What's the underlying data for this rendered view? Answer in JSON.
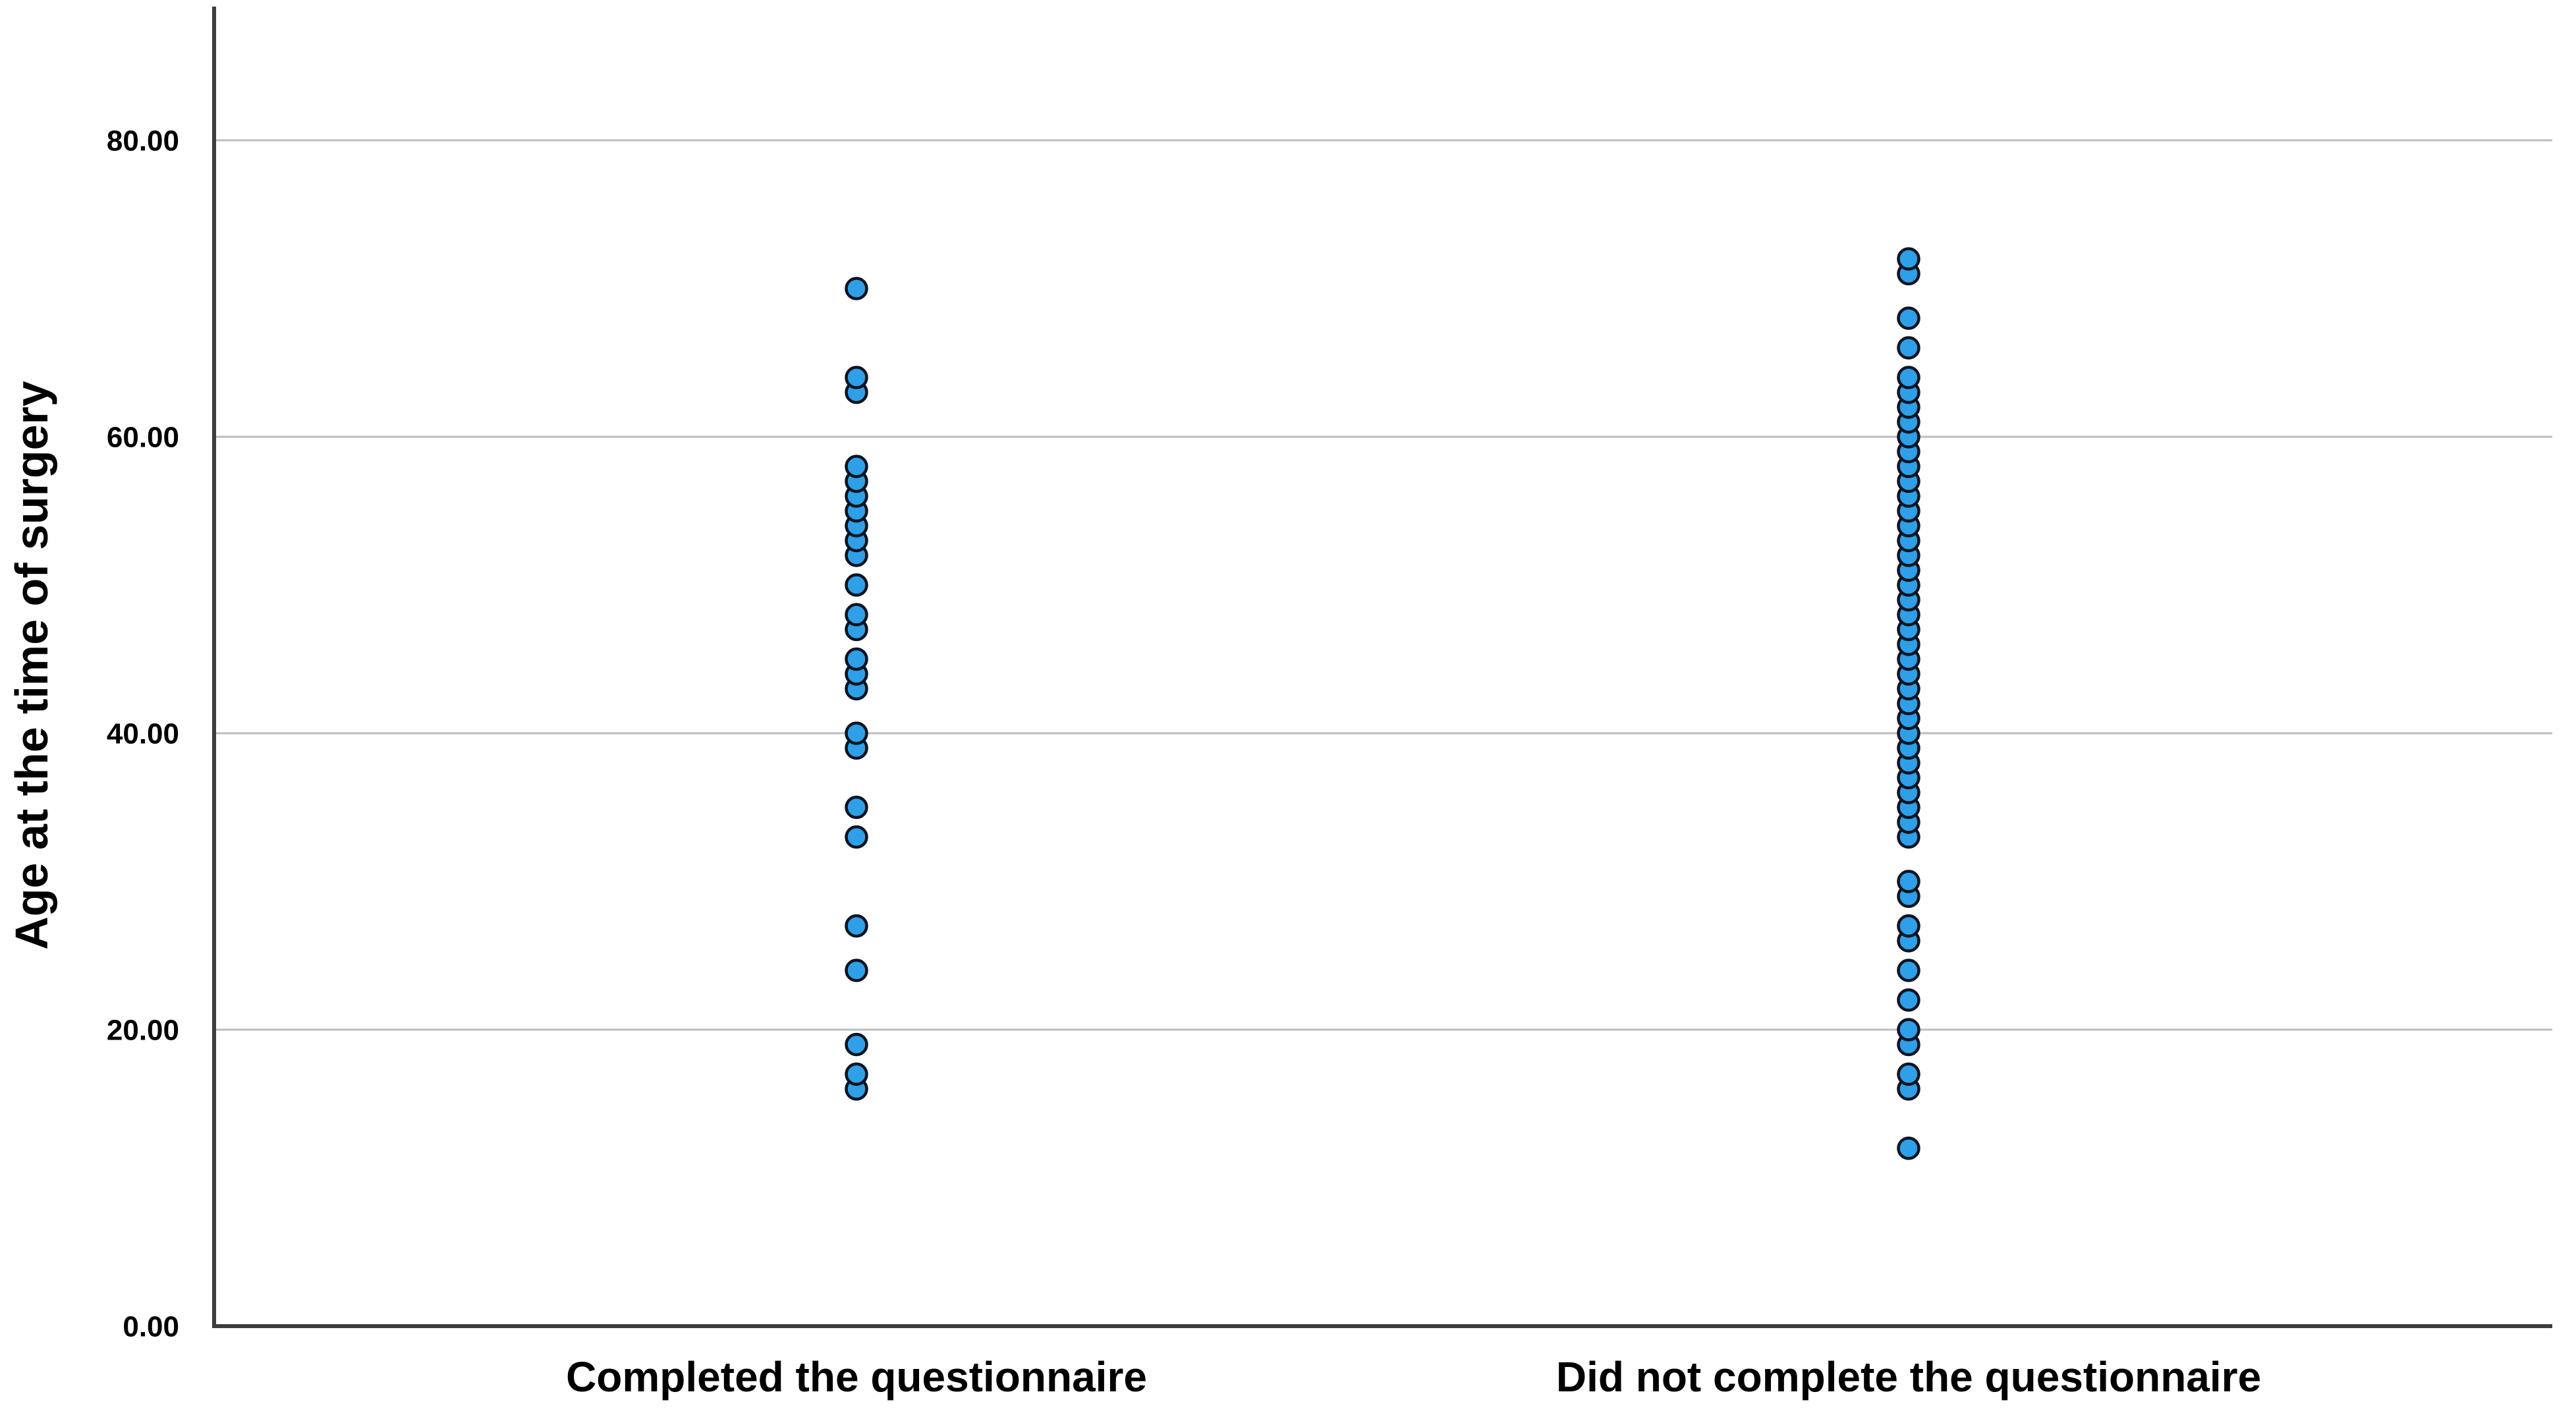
{
  "figure": {
    "background_color": "#ffffff",
    "text_color": "#000000"
  },
  "chart_data": {
    "type": "scatter",
    "variant": "strip-plot",
    "title": "",
    "xlabel": "",
    "ylabel": "Age at the time of surgery",
    "categories": [
      "Completed the questionnaire",
      "Did not complete the questionnaire"
    ],
    "series": [
      {
        "name": "Completed the questionnaire",
        "values": [
          70,
          64,
          63,
          58,
          57,
          56,
          55,
          54,
          53,
          52,
          50,
          48,
          47,
          45,
          44,
          43,
          40,
          39,
          35,
          33,
          27,
          24,
          19,
          17,
          16
        ]
      },
      {
        "name": "Did not complete the questionnaire",
        "values": [
          72,
          71,
          68,
          66,
          64,
          63,
          62,
          61,
          60,
          59,
          58,
          57,
          56,
          55,
          54,
          53,
          52,
          51,
          50,
          49,
          48,
          47,
          46,
          45,
          44,
          43,
          42,
          41,
          40,
          39,
          38,
          37,
          36,
          35,
          34,
          33,
          30,
          29,
          27,
          26,
          24,
          22,
          20,
          19,
          17,
          16,
          12
        ]
      }
    ],
    "ylim": [
      0,
      89
    ],
    "yticks": {
      "values": [
        0,
        20,
        40,
        60,
        80
      ],
      "labels": [
        "0.00",
        "20.00",
        "40.00",
        "60.00",
        "80.00"
      ]
    },
    "grid": {
      "show": true,
      "color": "#bcbcbc",
      "gridline_values": [
        20,
        40,
        60,
        80
      ]
    },
    "legend": {
      "show": false
    },
    "marker": {
      "shape": "circle",
      "fill": "#2f9fe8",
      "stroke": "#0b1420",
      "radius_px": 15.5,
      "stroke_width_px": 4.5
    },
    "axis_color": "#3d3d3d"
  }
}
